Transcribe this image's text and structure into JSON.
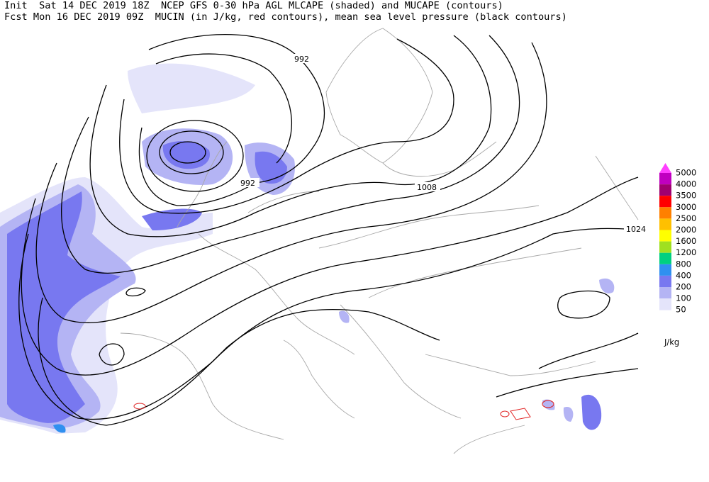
{
  "header": {
    "line1": "Init  Sat 14 DEC 2019 18Z  NCEP GFS 0-30 hPa AGL MLCAPE (shaded) and MUCAPE (contours)",
    "line2": "Fcst Mon 16 DEC 2019 09Z  MUCIN (in J/kg, red contours), mean sea level pressure (black contours)"
  },
  "contour_labels": [
    "992",
    "992",
    "1008",
    "1024"
  ],
  "legend": {
    "levels": [
      {
        "label": "5000",
        "color": "#ff40ff"
      },
      {
        "label": "4000",
        "color": "#c000c0"
      },
      {
        "label": "3500",
        "color": "#a00070"
      },
      {
        "label": "3000",
        "color": "#ff0000"
      },
      {
        "label": "2500",
        "color": "#ff8000"
      },
      {
        "label": "2000",
        "color": "#ffc000"
      },
      {
        "label": "1600",
        "color": "#ffff00"
      },
      {
        "label": "1200",
        "color": "#a0e020"
      },
      {
        "label": "800",
        "color": "#00d080"
      },
      {
        "label": "400",
        "color": "#3090f0"
      },
      {
        "label": "200",
        "color": "#7878f0"
      },
      {
        "label": "100",
        "color": "#b4b4f4"
      },
      {
        "label": "50",
        "color": "#e4e4fa"
      }
    ],
    "unit": "J/kg"
  }
}
